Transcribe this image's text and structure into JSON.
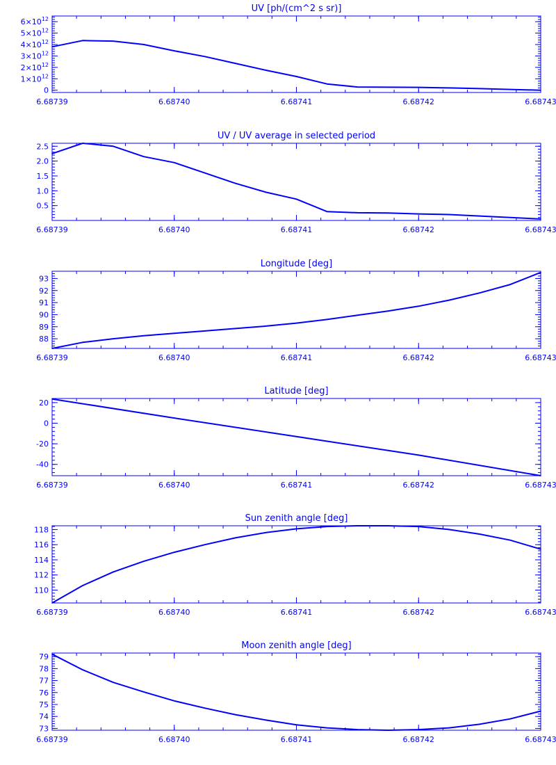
{
  "chart_data": [
    {
      "type": "line",
      "title": "UV [ph/(cm^2 s sr)]",
      "xlabel": "",
      "ylabel": "",
      "xlim": [
        6.68739,
        6.68743
      ],
      "x_tick_labels": [
        "6.68739",
        "6.68740",
        "6.68741",
        "6.68742",
        "6.68743"
      ],
      "x_tick_values": [
        6.68739,
        6.6874,
        6.68741,
        6.68742,
        6.68743
      ],
      "ylim": [
        -200000000000.0,
        6500000000000.0
      ],
      "y_tick_values": [
        0,
        1000000000000.0,
        2000000000000.0,
        3000000000000.0,
        4000000000000.0,
        5000000000000.0,
        6000000000000.0
      ],
      "y_tick_labels": [
        {
          "mantissa": "0",
          "exponent": ""
        },
        {
          "mantissa": "1×10",
          "exponent": "12"
        },
        {
          "mantissa": "2×10",
          "exponent": "12"
        },
        {
          "mantissa": "3×10",
          "exponent": "12"
        },
        {
          "mantissa": "4×10",
          "exponent": "12"
        },
        {
          "mantissa": "5×10",
          "exponent": "12"
        },
        {
          "mantissa": "6×10",
          "exponent": "12"
        }
      ],
      "grid": false,
      "series": [
        {
          "x": [
            6.68739,
            6.6873925,
            6.687395,
            6.6873975,
            6.6874,
            6.6874025,
            6.687405,
            6.6874075,
            6.68741,
            6.6874125,
            6.687415,
            6.6874175,
            6.68742,
            6.6874225,
            6.687425,
            6.6874275,
            6.68743
          ],
          "y": [
            3800000000000.0,
            4350000000000.0,
            4300000000000.0,
            4000000000000.0,
            3450000000000.0,
            2950000000000.0,
            2350000000000.0,
            1750000000000.0,
            1200000000000.0,
            550000000000.0,
            280000000000.0,
            260000000000.0,
            250000000000.0,
            200000000000.0,
            140000000000.0,
            70000000000.0,
            0.0
          ]
        }
      ]
    },
    {
      "type": "line",
      "title": "UV / UV average in selected period",
      "xlabel": "",
      "ylabel": "",
      "xlim": [
        6.68739,
        6.68743
      ],
      "x_tick_labels": [
        "6.68739",
        "6.68740",
        "6.68741",
        "6.68742",
        "6.68743"
      ],
      "x_tick_values": [
        6.68739,
        6.6874,
        6.68741,
        6.68742,
        6.68743
      ],
      "ylim": [
        0.0,
        2.6
      ],
      "y_tick_values": [
        0.5,
        1.0,
        1.5,
        2.0,
        2.5
      ],
      "y_tick_labels": [
        "0.5",
        "1.0",
        "1.5",
        "2.0",
        "2.5"
      ],
      "grid": false,
      "series": [
        {
          "x": [
            6.68739,
            6.6873925,
            6.687395,
            6.6873975,
            6.6874,
            6.6874025,
            6.687405,
            6.6874075,
            6.68741,
            6.6874125,
            6.687415,
            6.6874175,
            6.68742,
            6.6874225,
            6.687425,
            6.6874275,
            6.68743
          ],
          "y": [
            2.25,
            2.6,
            2.5,
            2.15,
            1.95,
            1.6,
            1.25,
            0.95,
            0.72,
            0.3,
            0.26,
            0.25,
            0.22,
            0.2,
            0.15,
            0.1,
            0.05
          ]
        }
      ]
    },
    {
      "type": "line",
      "title": "Longitude [deg]",
      "xlabel": "",
      "ylabel": "",
      "xlim": [
        6.68739,
        6.68743
      ],
      "x_tick_labels": [
        "6.68739",
        "6.68740",
        "6.68741",
        "6.68742",
        "6.68743"
      ],
      "x_tick_values": [
        6.68739,
        6.6874,
        6.68741,
        6.68742,
        6.68743
      ],
      "ylim": [
        87.2,
        93.6
      ],
      "y_tick_values": [
        88,
        89,
        90,
        91,
        92,
        93
      ],
      "y_tick_labels": [
        "88",
        "89",
        "90",
        "91",
        "92",
        "93"
      ],
      "grid": false,
      "series": [
        {
          "x": [
            6.68739,
            6.6873925,
            6.687395,
            6.6873975,
            6.6874,
            6.6874025,
            6.687405,
            6.6874075,
            6.68741,
            6.6874125,
            6.687415,
            6.6874175,
            6.68742,
            6.6874225,
            6.687425,
            6.6874275,
            6.68743
          ],
          "y": [
            87.2,
            87.7,
            88.0,
            88.25,
            88.45,
            88.65,
            88.85,
            89.05,
            89.3,
            89.6,
            89.95,
            90.3,
            90.7,
            91.2,
            91.8,
            92.5,
            93.5
          ]
        }
      ]
    },
    {
      "type": "line",
      "title": "Latitude [deg]",
      "xlabel": "",
      "ylabel": "",
      "xlim": [
        6.68739,
        6.68743
      ],
      "x_tick_labels": [
        "6.68739",
        "6.68740",
        "6.68741",
        "6.68742",
        "6.68743"
      ],
      "x_tick_values": [
        6.68739,
        6.6874,
        6.68741,
        6.68742,
        6.68743
      ],
      "ylim": [
        -51,
        24
      ],
      "y_tick_values": [
        -40,
        -20,
        0,
        20
      ],
      "y_tick_labels": [
        "-40",
        "-20",
        "0",
        "20"
      ],
      "grid": false,
      "series": [
        {
          "x": [
            6.68739,
            6.6874,
            6.68741,
            6.68742,
            6.68743
          ],
          "y": [
            23.5,
            5.0,
            -13.0,
            -31.0,
            -51.0
          ]
        }
      ]
    },
    {
      "type": "line",
      "title": "Sun zenith angle [deg]",
      "xlabel": "",
      "ylabel": "",
      "xlim": [
        6.68739,
        6.68743
      ],
      "x_tick_labels": [
        "6.68739",
        "6.68740",
        "6.68741",
        "6.68742",
        "6.68743"
      ],
      "x_tick_values": [
        6.68739,
        6.6874,
        6.68741,
        6.68742,
        6.68743
      ],
      "ylim": [
        108.3,
        118.5
      ],
      "y_tick_values": [
        110,
        112,
        114,
        116,
        118
      ],
      "y_tick_labels": [
        "110",
        "112",
        "114",
        "116",
        "118"
      ],
      "grid": false,
      "series": [
        {
          "x": [
            6.68739,
            6.6873925,
            6.687395,
            6.6873975,
            6.6874,
            6.6874025,
            6.687405,
            6.6874075,
            6.68741,
            6.6874125,
            6.687415,
            6.6874175,
            6.68742,
            6.6874225,
            6.687425,
            6.6874275,
            6.68743
          ],
          "y": [
            108.3,
            110.6,
            112.4,
            113.8,
            115.0,
            116.0,
            116.9,
            117.6,
            118.1,
            118.4,
            118.5,
            118.5,
            118.4,
            118.0,
            117.4,
            116.6,
            115.4
          ]
        }
      ]
    },
    {
      "type": "line",
      "title": "Moon zenith angle [deg]",
      "xlabel": "",
      "ylabel": "",
      "xlim": [
        6.68739,
        6.68743
      ],
      "x_tick_labels": [
        "6.68739",
        "6.68740",
        "6.68741",
        "6.68742",
        "6.68743"
      ],
      "x_tick_values": [
        6.68739,
        6.6874,
        6.68741,
        6.68742,
        6.68743
      ],
      "ylim": [
        72.85,
        79.3
      ],
      "y_tick_values": [
        73,
        74,
        75,
        76,
        77,
        78,
        79
      ],
      "y_tick_labels": [
        "73",
        "74",
        "75",
        "76",
        "77",
        "78",
        "79"
      ],
      "grid": false,
      "series": [
        {
          "x": [
            6.68739,
            6.6873925,
            6.687395,
            6.6873975,
            6.6874,
            6.6874025,
            6.687405,
            6.6874075,
            6.68741,
            6.6874125,
            6.687415,
            6.6874175,
            6.68742,
            6.6874225,
            6.687425,
            6.6874275,
            6.68743
          ],
          "y": [
            79.2,
            77.9,
            76.85,
            76.05,
            75.3,
            74.7,
            74.15,
            73.7,
            73.3,
            73.05,
            72.9,
            72.85,
            72.9,
            73.05,
            73.35,
            73.8,
            74.45
          ]
        }
      ]
    }
  ]
}
